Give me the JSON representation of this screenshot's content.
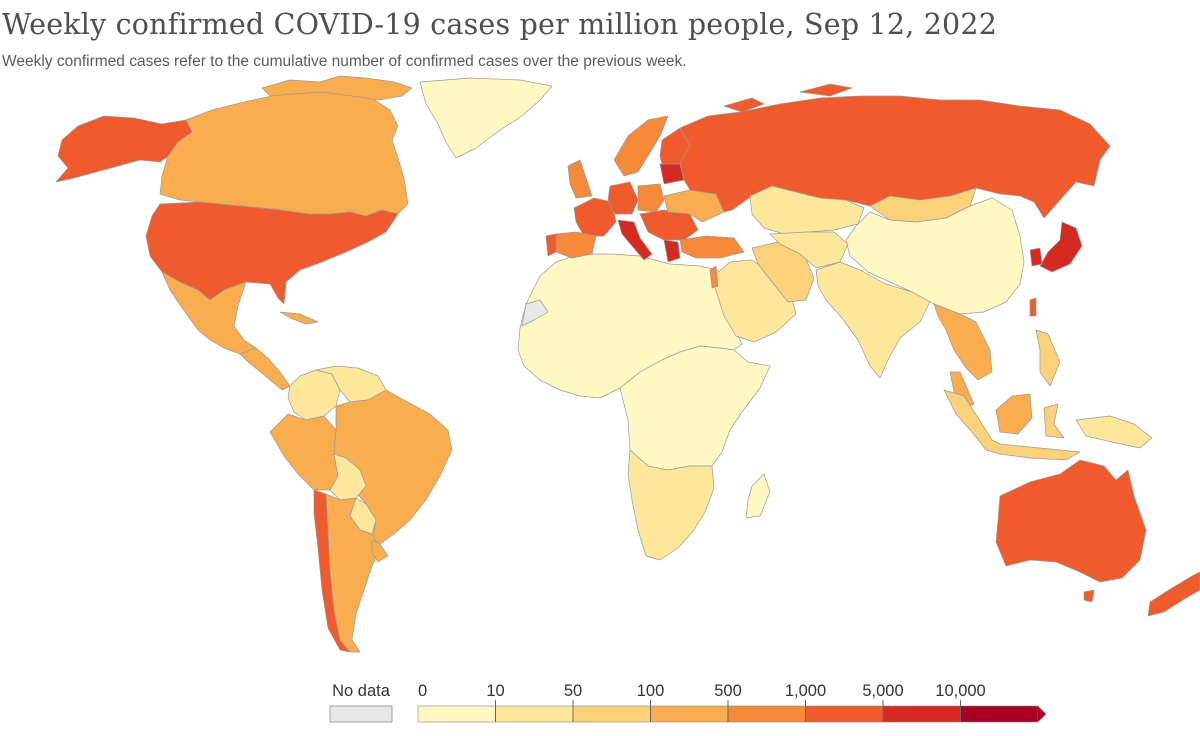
{
  "title": "Weekly confirmed COVID-19 cases per million people, Sep 12, 2022",
  "subtitle": "Weekly confirmed cases refer to the cumulative number of confirmed cases over the previous week.",
  "chart_data": {
    "type": "choropleth",
    "legend": {
      "no_data_label": "No data",
      "no_data_color": "#e8e8e8",
      "ticks": [
        "0",
        "10",
        "50",
        "100",
        "500",
        "1,000",
        "5,000",
        "10,000"
      ],
      "bins": [
        {
          "min": 0,
          "max": 10,
          "color": "#fff8c2"
        },
        {
          "min": 10,
          "max": 50,
          "color": "#fde79a"
        },
        {
          "min": 50,
          "max": 100,
          "color": "#fbd27a"
        },
        {
          "min": 100,
          "max": 500,
          "color": "#f9ad4f"
        },
        {
          "min": 500,
          "max": 1000,
          "color": "#f6893a"
        },
        {
          "min": 1000,
          "max": 5000,
          "color": "#ef5b2c"
        },
        {
          "min": 5000,
          "max": 10000,
          "color": "#d42a21"
        },
        {
          "min": 10000,
          "max": null,
          "color": "#a80024"
        }
      ]
    },
    "regions": [
      {
        "name": "Canada",
        "bin": 3
      },
      {
        "name": "United States",
        "bin": 5
      },
      {
        "name": "Alaska",
        "bin": 5
      },
      {
        "name": "Greenland",
        "bin": 0
      },
      {
        "name": "Mexico",
        "bin": 3
      },
      {
        "name": "Central America",
        "bin": 3
      },
      {
        "name": "Colombia",
        "bin": 1
      },
      {
        "name": "Venezuela",
        "bin": 1
      },
      {
        "name": "Peru",
        "bin": 3
      },
      {
        "name": "Brazil",
        "bin": 3
      },
      {
        "name": "Bolivia",
        "bin": 1
      },
      {
        "name": "Paraguay",
        "bin": 1
      },
      {
        "name": "Chile",
        "bin": 5
      },
      {
        "name": "Argentina",
        "bin": 3
      },
      {
        "name": "Uruguay",
        "bin": 3
      },
      {
        "name": "Western Sahara",
        "bin": null
      },
      {
        "name": "North and West Africa",
        "bin": 0
      },
      {
        "name": "Central and East Africa",
        "bin": 0
      },
      {
        "name": "Southern Africa",
        "bin": 1
      },
      {
        "name": "Madagascar",
        "bin": 0
      },
      {
        "name": "Spain",
        "bin": 4
      },
      {
        "name": "Portugal",
        "bin": 5
      },
      {
        "name": "United Kingdom",
        "bin": 4
      },
      {
        "name": "France",
        "bin": 5
      },
      {
        "name": "Germany",
        "bin": 5
      },
      {
        "name": "Italy",
        "bin": 6
      },
      {
        "name": "Poland",
        "bin": 4
      },
      {
        "name": "Scandinavia",
        "bin": 4
      },
      {
        "name": "Finland",
        "bin": 5
      },
      {
        "name": "Baltic states",
        "bin": 6
      },
      {
        "name": "Balkans",
        "bin": 5
      },
      {
        "name": "Greece",
        "bin": 6
      },
      {
        "name": "Ukraine",
        "bin": 3
      },
      {
        "name": "Turkey",
        "bin": 4
      },
      {
        "name": "Russia",
        "bin": 5
      },
      {
        "name": "Kazakhstan",
        "bin": 1
      },
      {
        "name": "Mongolia",
        "bin": 2
      },
      {
        "name": "China",
        "bin": 0
      },
      {
        "name": "Japan",
        "bin": 6
      },
      {
        "name": "South Korea",
        "bin": 6
      },
      {
        "name": "Taiwan",
        "bin": 5
      },
      {
        "name": "Middle East",
        "bin": 1
      },
      {
        "name": "Iran",
        "bin": 2
      },
      {
        "name": "Israel",
        "bin": 4
      },
      {
        "name": "Central Asia",
        "bin": 1
      },
      {
        "name": "India",
        "bin": 1
      },
      {
        "name": "Southeast Asia",
        "bin": 3
      },
      {
        "name": "Philippines",
        "bin": 2
      },
      {
        "name": "Indonesia",
        "bin": 2
      },
      {
        "name": "Malaysia",
        "bin": 3
      },
      {
        "name": "Papua New Guinea",
        "bin": 1
      },
      {
        "name": "Australia",
        "bin": 5
      },
      {
        "name": "New Zealand",
        "bin": 5
      }
    ]
  }
}
